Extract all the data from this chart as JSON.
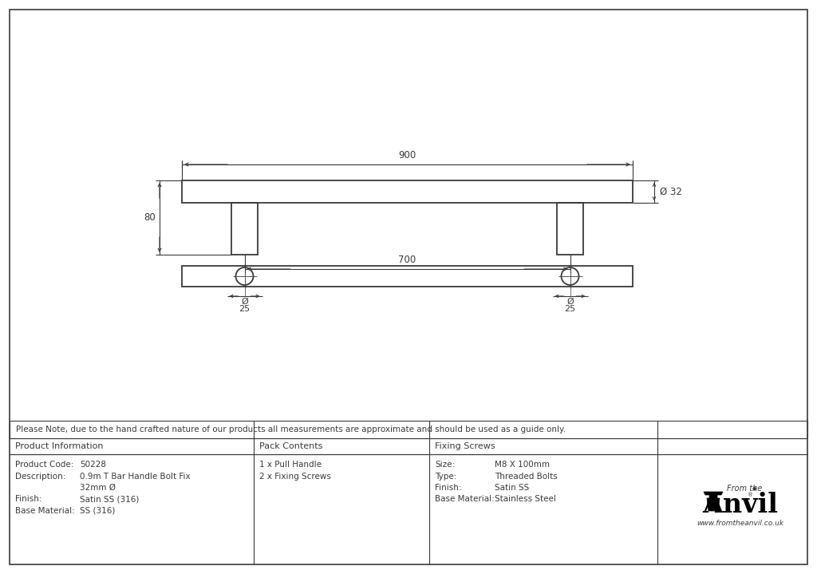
{
  "bg_color": "#ffffff",
  "lc": "#3a3a3a",
  "note_text": "Please Note, due to the hand crafted nature of our products all measurements are approximate and should be used as a guide only.",
  "product_info_header": "Product Information",
  "product_info_rows": [
    [
      "Product Code:",
      "50228"
    ],
    [
      "Description:",
      "0.9m T Bar Handle Bolt Fix"
    ],
    [
      "",
      "32mm Ø"
    ],
    [
      "Finish:",
      "Satin SS (316)"
    ],
    [
      "Base Material:",
      "SS (316)"
    ]
  ],
  "pack_header": "Pack Contents",
  "pack_rows": [
    "1 x Pull Handle",
    "2 x Fixing Screws"
  ],
  "fixing_header": "Fixing Screws",
  "fixing_rows": [
    [
      "Size:",
      "M8 X 100mm"
    ],
    [
      "Type:",
      "Threaded Bolts"
    ],
    [
      "Finish:",
      "Satin SS"
    ],
    [
      "Base Material:",
      "Stainless Steel"
    ]
  ],
  "dim_900": "900",
  "dim_700": "700",
  "dim_80": "80",
  "dim_32": "Ø 32",
  "dim_25": "25",
  "diam_sym": "Ø"
}
